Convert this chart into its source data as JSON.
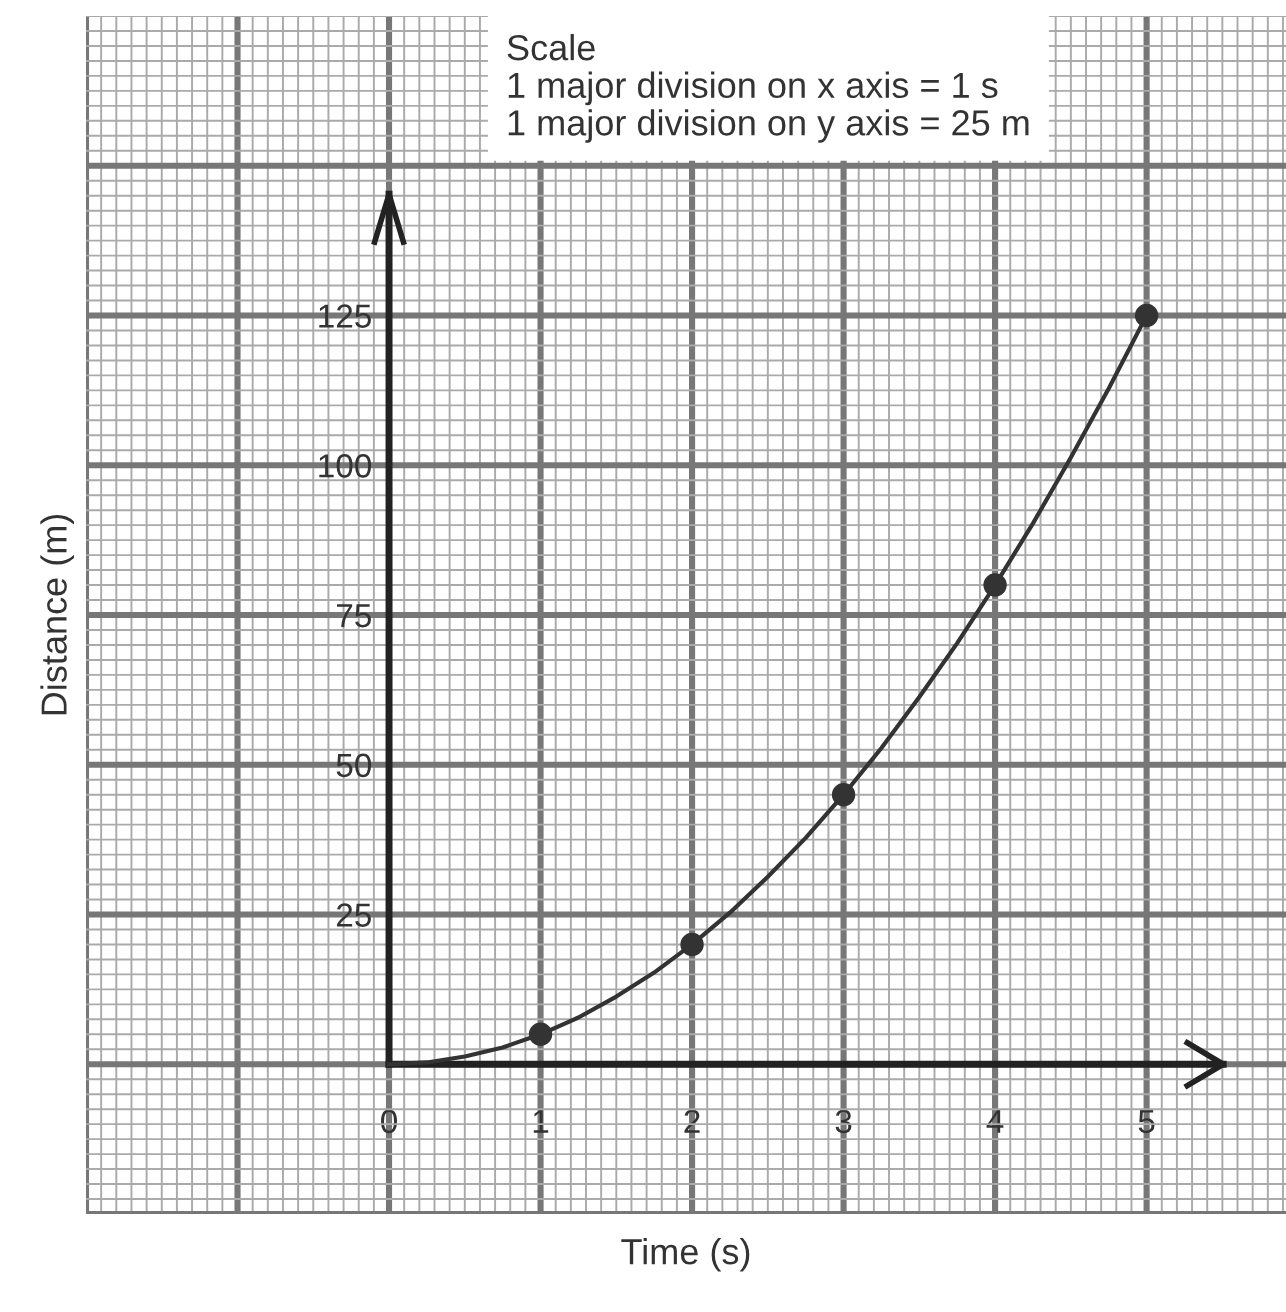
{
  "chart_data": {
    "type": "line",
    "xlabel": "Time (s)",
    "ylabel": "Distance (m)",
    "xlim": [
      -2,
      5.92
    ],
    "ylim": [
      -25,
      175
    ],
    "xticks": [
      {
        "value": -2,
        "label": null
      },
      {
        "value": -1,
        "label": null
      },
      0,
      1,
      2,
      3,
      4,
      5
    ],
    "yticks": [
      {
        "value": -25,
        "label": null
      },
      {
        "value": 0,
        "label": null
      },
      25,
      50,
      75,
      100,
      125,
      {
        "value": 150,
        "label": null
      }
    ],
    "grid": true,
    "annotations": [
      "Scale\n1 major division on x axis = 1 s\n1 major division on y axis = 25 m"
    ],
    "series": [
      {
        "x": [
          0,
          0.25,
          0.5,
          0.75,
          1,
          1.25,
          1.5,
          1.75,
          2,
          2.25,
          2.5,
          2.75,
          3,
          3.25,
          3.5,
          3.75,
          4,
          4.25,
          4.5,
          4.75,
          5
        ],
        "values": [
          0,
          0.3,
          1.3,
          2.8,
          5,
          7.8,
          11.3,
          15.3,
          20,
          25.3,
          31.3,
          37.8,
          45,
          52.8,
          61.3,
          70.3,
          80,
          90.3,
          101.3,
          112.8,
          125
        ],
        "color": "#333333",
        "marker": "none",
        "line_style": "solid"
      },
      {
        "type": "scatter",
        "x": [
          1,
          2,
          3,
          4,
          5
        ],
        "values": [
          5,
          20,
          45,
          80,
          125
        ],
        "color": "#333333",
        "marker": "circle"
      }
    ]
  }
}
